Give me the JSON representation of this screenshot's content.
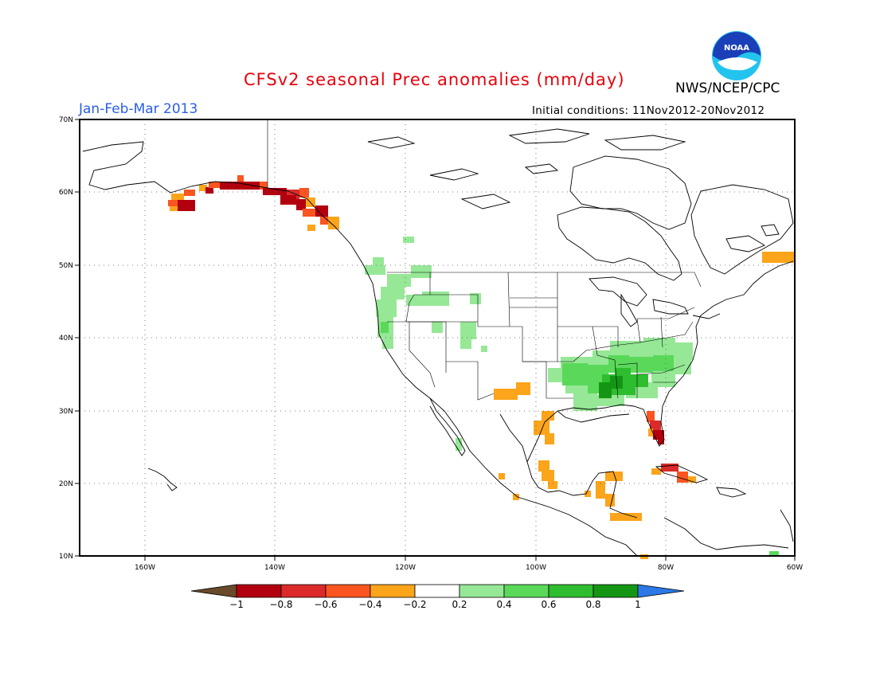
{
  "header": {
    "title": "CFSv2 seasonal Prec anomalies (mm/day)",
    "agency": "NWS/NCEP/CPC",
    "logo_text": "NOAA",
    "period": "Jan-Feb-Mar 2013",
    "initial_conditions": "Initial conditions: 11Nov2012-20Nov2012"
  },
  "axes": {
    "lon_ticks": [
      "160W",
      "140W",
      "120W",
      "100W",
      "80W",
      "60W"
    ],
    "lat_ticks": [
      "70N",
      "60N",
      "50N",
      "40N",
      "30N",
      "20N",
      "10N"
    ],
    "lon_range": [
      -172,
      -60
    ],
    "lat_range": [
      10,
      70
    ],
    "grid": "dotted"
  },
  "colorbar": {
    "labels": [
      "-1",
      "-0.8",
      "-0.6",
      "-0.4",
      "-0.2",
      "0.2",
      "0.4",
      "0.6",
      "0.8",
      "1"
    ],
    "colors": [
      "#6b4a2b",
      "#b3000f",
      "#dc2a2a",
      "#fa5520",
      "#fca41a",
      "#ffffff",
      "#96e896",
      "#5ad85a",
      "#2ebd2e",
      "#149614",
      "#2c79e6"
    ]
  },
  "colors": {
    "title": "#e8000b",
    "period": "#2a5ee8",
    "noaa_blue": "#1a3fb8",
    "noaa_cyan": "#22c4ee"
  }
}
